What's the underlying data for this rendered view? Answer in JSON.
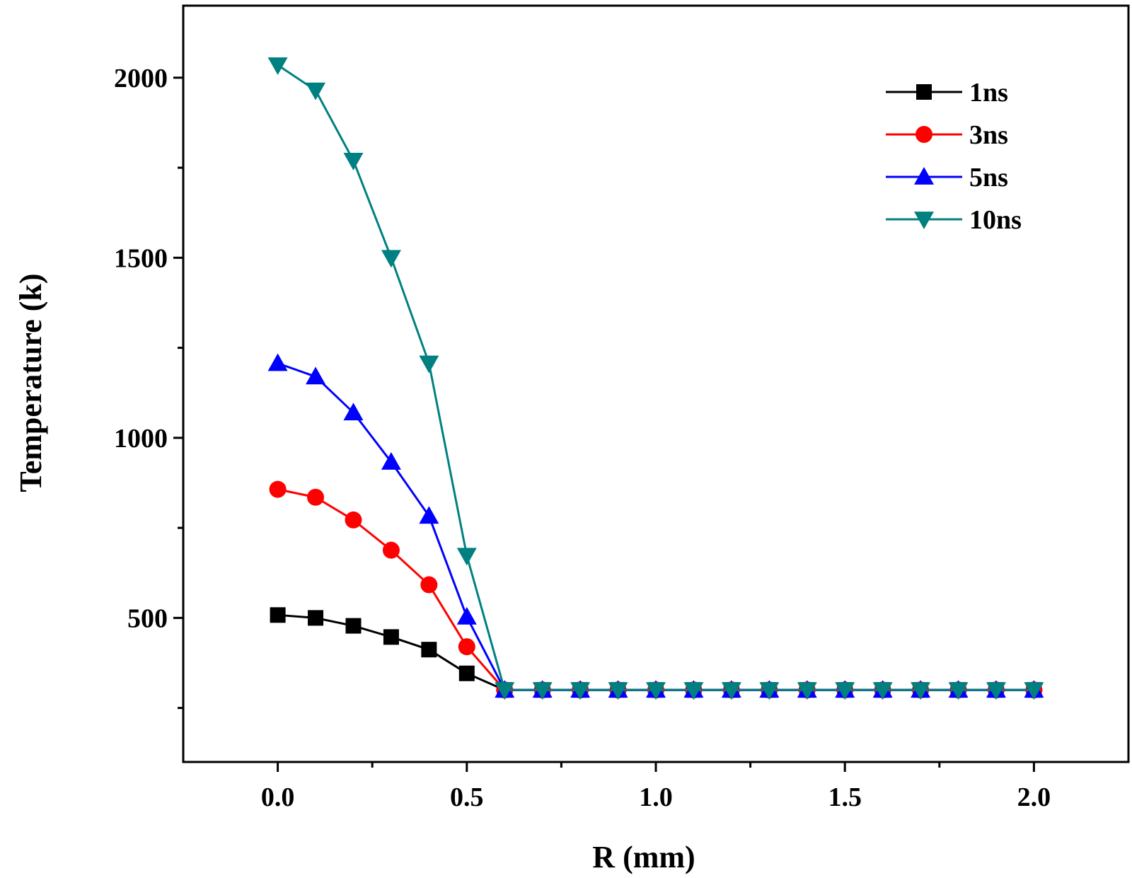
{
  "chart_data": {
    "type": "line",
    "title": "",
    "xlabel": "R (mm)",
    "ylabel": "Temperature (k)",
    "xlim": [
      -0.25,
      2.25
    ],
    "ylim": [
      100,
      2200
    ],
    "x_ticks": [
      0.0,
      0.5,
      1.0,
      1.5,
      2.0
    ],
    "x_tick_labels": [
      "0.0",
      "0.5",
      "1.0",
      "1.5",
      "2.0"
    ],
    "x_minor_ticks": [
      0.25,
      0.75,
      1.25,
      1.75
    ],
    "y_ticks": [
      500,
      1000,
      1500,
      2000
    ],
    "y_tick_labels": [
      "500",
      "1000",
      "1500",
      "2000"
    ],
    "y_minor_ticks": [
      250,
      750,
      1250,
      1750
    ],
    "grid": false,
    "legend_position": "top-right",
    "x": [
      0.0,
      0.1,
      0.2,
      0.3,
      0.4,
      0.5,
      0.6,
      0.7,
      0.8,
      0.9,
      1.0,
      1.1,
      1.2,
      1.3,
      1.4,
      1.5,
      1.6,
      1.7,
      1.8,
      1.9,
      2.0
    ],
    "series": [
      {
        "name": "1ns",
        "color": "#000000",
        "marker": "square",
        "values": [
          508,
          500,
          478,
          447,
          412,
          346,
          300,
          300,
          300,
          300,
          300,
          300,
          300,
          300,
          300,
          300,
          300,
          300,
          300,
          300,
          300
        ]
      },
      {
        "name": "3ns",
        "color": "#ff0000",
        "marker": "circle",
        "values": [
          857,
          835,
          772,
          688,
          592,
          420,
          300,
          300,
          300,
          300,
          300,
          300,
          300,
          300,
          300,
          300,
          300,
          300,
          300,
          300,
          300
        ]
      },
      {
        "name": "5ns",
        "color": "#0000ff",
        "marker": "triangle-up",
        "values": [
          1207,
          1170,
          1070,
          933,
          783,
          503,
          300,
          300,
          300,
          300,
          300,
          300,
          300,
          300,
          300,
          300,
          300,
          300,
          300,
          300,
          300
        ]
      },
      {
        "name": "10ns",
        "color": "#008080",
        "marker": "triangle-down",
        "values": [
          2035,
          1965,
          1770,
          1500,
          1207,
          673,
          300,
          300,
          300,
          300,
          300,
          300,
          300,
          300,
          300,
          300,
          300,
          300,
          300,
          300,
          300
        ]
      }
    ]
  }
}
